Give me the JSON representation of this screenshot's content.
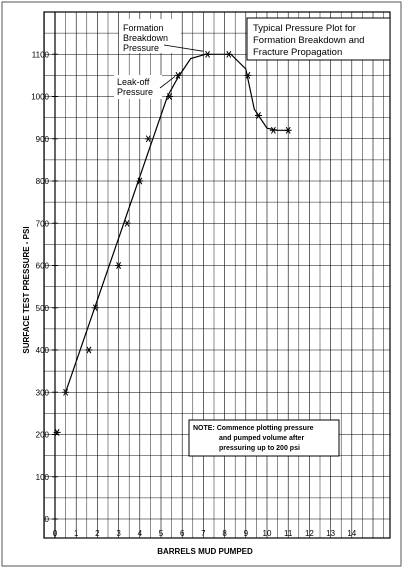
{
  "chart_data": {
    "type": "line",
    "title_lines": [
      "Typical Pressure Plot for",
      "Formation Breakdown and",
      "Fracture Propagation"
    ],
    "xlabel": "BARRELS MUD PUMPED",
    "ylabel": "SURFACE TEST PRESSURE - PSI",
    "xlim": [
      0,
      15
    ],
    "ylim": [
      0,
      1200
    ],
    "x_ticks": [
      "0",
      "1",
      "2",
      "3",
      "4",
      "5",
      "6",
      "7",
      "8",
      "9",
      "10",
      "11",
      "12",
      "13",
      "14"
    ],
    "y_ticks": [
      {
        "value": 0,
        "label": "0"
      },
      {
        "value": 100,
        "label": "100"
      },
      {
        "value": 200,
        "label": "200"
      },
      {
        "value": 300,
        "label": "300"
      },
      {
        "value": 400,
        "label": "400"
      },
      {
        "value": 500,
        "label": "500"
      },
      {
        "value": 600,
        "label": "600"
      },
      {
        "value": 700,
        "label": "700"
      },
      {
        "value": 800,
        "label": "800"
      },
      {
        "value": 900,
        "label": "900"
      },
      {
        "value": 1000,
        "label": "1000"
      },
      {
        "value": 1100,
        "label": "1100"
      }
    ],
    "grid": true,
    "points": [
      {
        "x": 0.1,
        "y": 205
      },
      {
        "x": 0.5,
        "y": 300
      },
      {
        "x": 1.6,
        "y": 400
      },
      {
        "x": 1.9,
        "y": 500
      },
      {
        "x": 3.0,
        "y": 600
      },
      {
        "x": 3.4,
        "y": 700
      },
      {
        "x": 4.0,
        "y": 800
      },
      {
        "x": 4.4,
        "y": 900
      },
      {
        "x": 5.4,
        "y": 1000
      },
      {
        "x": 5.8,
        "y": 1050
      },
      {
        "x": 7.2,
        "y": 1100
      },
      {
        "x": 8.2,
        "y": 1100
      },
      {
        "x": 9.1,
        "y": 1050
      },
      {
        "x": 9.6,
        "y": 955
      },
      {
        "x": 10.3,
        "y": 920
      },
      {
        "x": 11.0,
        "y": 920
      }
    ],
    "line": [
      {
        "x": 0.5,
        "y": 300
      },
      {
        "x": 5.3,
        "y": 1000
      },
      {
        "x": 5.8,
        "y": 1045
      },
      {
        "x": 6.4,
        "y": 1090
      },
      {
        "x": 7.1,
        "y": 1100
      },
      {
        "x": 8.3,
        "y": 1100
      },
      {
        "x": 9.0,
        "y": 1065
      },
      {
        "x": 9.4,
        "y": 970
      },
      {
        "x": 10.0,
        "y": 925
      },
      {
        "x": 10.5,
        "y": 920
      },
      {
        "x": 11.0,
        "y": 920
      }
    ],
    "annotations": [
      {
        "id": "formation-breakdown",
        "lines": [
          "Formation",
          "Breakdown",
          "Pressure"
        ],
        "target": {
          "x": 7.2,
          "y": 1100
        }
      },
      {
        "id": "leak-off",
        "lines": [
          "Leak-off",
          "Pressure"
        ],
        "target": {
          "x": 5.8,
          "y": 1050
        }
      }
    ],
    "note": {
      "lines": [
        "NOTE: Commence plotting pressure",
        "and pumped volume after",
        "pressuring up to 200 psi"
      ]
    }
  }
}
